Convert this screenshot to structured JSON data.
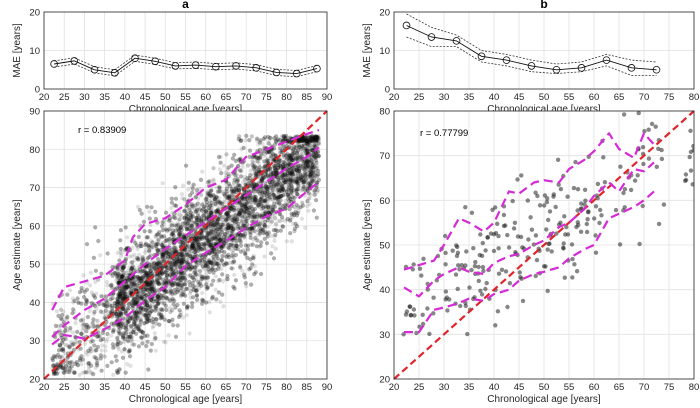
{
  "chart_data": [
    {
      "id": "a-mae",
      "type": "line",
      "panel_label": "a",
      "xlabel": "Chronological age [years]",
      "ylabel": "MAE [years]",
      "xlim": [
        20,
        90
      ],
      "ylim": [
        0,
        20
      ],
      "xticks": [
        20,
        25,
        30,
        35,
        40,
        45,
        50,
        55,
        60,
        65,
        70,
        75,
        80,
        85,
        90
      ],
      "yticks": [
        0,
        10,
        20
      ],
      "grid": true,
      "series": [
        {
          "name": "MAE",
          "x": [
            22.5,
            27.5,
            32.5,
            37.5,
            42.5,
            47.5,
            52.5,
            57.5,
            62.5,
            67.5,
            72.5,
            77.5,
            82.5,
            87.5
          ],
          "values": [
            6.5,
            7.3,
            5.0,
            4.2,
            8.0,
            7.2,
            6.0,
            6.2,
            5.8,
            6.0,
            5.5,
            4.3,
            4.0,
            5.3
          ]
        }
      ],
      "ci_halfwidth": 0.8
    },
    {
      "id": "b-mae",
      "type": "line",
      "panel_label": "b",
      "xlabel": "Chronological age [years]",
      "ylabel": "MAE [years]",
      "xlim": [
        20,
        80
      ],
      "ylim": [
        0,
        20
      ],
      "xticks": [
        20,
        25,
        30,
        35,
        40,
        45,
        50,
        55,
        60,
        65,
        70,
        75,
        80
      ],
      "yticks": [
        0,
        10,
        20
      ],
      "grid": true,
      "series": [
        {
          "name": "MAE",
          "x": [
            22.5,
            27.5,
            32.5,
            37.5,
            42.5,
            47.5,
            52.5,
            57.5,
            62.5,
            67.5,
            72.5
          ],
          "values": [
            16.5,
            13.5,
            12.5,
            8.5,
            7.5,
            6.0,
            5.0,
            5.5,
            7.5,
            5.5,
            5.0
          ]
        }
      ],
      "ci_upper": [
        19.5,
        16.0,
        14.0,
        10.0,
        9.0,
        7.5,
        6.5,
        7.0,
        9.0,
        7.5,
        7.0
      ],
      "ci_lower": [
        13.5,
        11.0,
        11.0,
        7.0,
        6.0,
        4.5,
        4.0,
        4.5,
        6.0,
        3.5,
        3.5
      ]
    },
    {
      "id": "a-scatter",
      "type": "scatter",
      "xlabel": "Chronological age [years]",
      "ylabel": "Age estimate [years]",
      "xlim": [
        20,
        90
      ],
      "ylim": [
        20,
        90
      ],
      "xticks": [
        20,
        25,
        30,
        35,
        40,
        45,
        50,
        55,
        60,
        65,
        70,
        75,
        80,
        85,
        90
      ],
      "yticks": [
        20,
        30,
        40,
        50,
        60,
        70,
        80,
        90
      ],
      "grid": true,
      "annotation": "r = 0.83909",
      "points_count": 9000,
      "ceiling": 83.5,
      "identity_line": [
        [
          20,
          20
        ],
        [
          90,
          90
        ]
      ],
      "bands": [
        {
          "name": "upper",
          "x": [
            22,
            25,
            30,
            35,
            40,
            42,
            45,
            50,
            55,
            60,
            65,
            70,
            75,
            80,
            85,
            88
          ],
          "y": [
            38,
            44,
            45.5,
            47,
            51,
            57,
            60.5,
            62,
            65.5,
            70,
            72,
            78,
            80,
            82,
            84,
            85
          ]
        },
        {
          "name": "middle",
          "x": [
            22,
            25,
            30,
            35,
            40,
            45,
            50,
            55,
            60,
            65,
            70,
            75,
            80,
            85,
            88
          ],
          "y": [
            31,
            34,
            38,
            41,
            45.5,
            50,
            54,
            57.5,
            61,
            64.5,
            68,
            71.5,
            75,
            78,
            80.5
          ]
        },
        {
          "name": "lower",
          "x": [
            22,
            25,
            28,
            30,
            35,
            40,
            45,
            50,
            55,
            60,
            65,
            70,
            75,
            80,
            85,
            88
          ],
          "y": [
            29,
            31.5,
            31,
            30.5,
            33,
            36,
            40.5,
            44,
            49.5,
            53,
            56,
            59.5,
            62.5,
            64.5,
            69,
            71.5
          ]
        }
      ]
    },
    {
      "id": "b-scatter",
      "type": "scatter",
      "xlabel": "Chronological age [years]",
      "ylabel": "Age estimate [years]",
      "xlim": [
        20,
        80
      ],
      "ylim": [
        20,
        80
      ],
      "xticks": [
        20,
        25,
        30,
        35,
        40,
        45,
        50,
        55,
        60,
        65,
        70,
        75,
        80
      ],
      "yticks": [
        20,
        30,
        40,
        50,
        60,
        70,
        80
      ],
      "grid": true,
      "annotation": "r = 0.77799",
      "points_count": 260,
      "identity_line": [
        [
          20,
          20
        ],
        [
          80,
          80
        ]
      ],
      "bands": [
        {
          "name": "upper",
          "x": [
            22,
            25,
            28,
            30,
            33,
            35,
            38,
            40,
            43,
            45,
            48,
            50,
            53,
            55,
            58,
            60,
            63,
            65,
            68,
            70,
            72
          ],
          "y": [
            44.5,
            45.5,
            46.5,
            50,
            56,
            55,
            53,
            55,
            62,
            61.5,
            64,
            64.5,
            64,
            67,
            69,
            71,
            75,
            71.5,
            69.5,
            75,
            72.5
          ]
        },
        {
          "name": "middle",
          "x": [
            22,
            25,
            28,
            30,
            33,
            35,
            38,
            40,
            43,
            45,
            48,
            50,
            53,
            55,
            58,
            60,
            63,
            65,
            68,
            70,
            72
          ],
          "y": [
            40.5,
            38.5,
            42,
            43.5,
            45,
            44,
            43.5,
            46,
            47.5,
            48,
            50,
            51,
            54,
            55,
            58,
            61,
            64,
            62,
            67,
            66.5,
            68.5
          ]
        },
        {
          "name": "lower",
          "x": [
            22,
            25,
            28,
            30,
            33,
            35,
            38,
            40,
            43,
            45,
            48,
            50,
            53,
            55,
            58,
            60,
            63,
            65,
            68,
            70,
            72
          ],
          "y": [
            30.5,
            30.5,
            35.5,
            36,
            37,
            38,
            37.5,
            39,
            40,
            42,
            43.5,
            44,
            45,
            47,
            49,
            50,
            56,
            57,
            58.5,
            60,
            62
          ]
        }
      ]
    }
  ]
}
